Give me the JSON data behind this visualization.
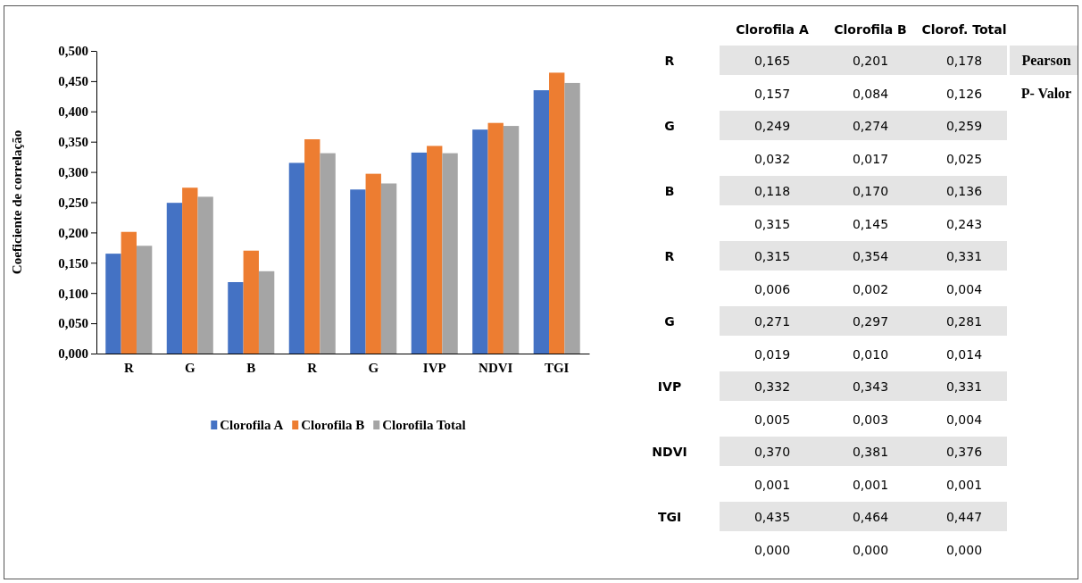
{
  "chart_data": [
    {
      "type": "bar",
      "ylabel": "Coeficiente de correlação",
      "categories": [
        "R",
        "G",
        "B",
        "R",
        "G",
        "IVP",
        "NDVI",
        "TGI"
      ],
      "series": [
        {
          "name": "Clorofila A",
          "color": "#4472c4",
          "values": [
            0.165,
            0.249,
            0.118,
            0.315,
            0.271,
            0.332,
            0.37,
            0.435
          ]
        },
        {
          "name": "Clorofila B",
          "color": "#ed7d31",
          "values": [
            0.201,
            0.274,
            0.17,
            0.354,
            0.297,
            0.343,
            0.381,
            0.464
          ]
        },
        {
          "name": "Clorofila Total",
          "color": "#a5a5a5",
          "values": [
            0.178,
            0.259,
            0.136,
            0.331,
            0.281,
            0.331,
            0.376,
            0.447
          ]
        }
      ],
      "ylim": [
        0,
        0.5
      ],
      "yticks": [
        {
          "value": 0,
          "label": "0,000"
        },
        {
          "value": 0.05,
          "label": "0,050"
        },
        {
          "value": 0.1,
          "label": "0,100"
        },
        {
          "value": 0.15,
          "label": "0,150"
        },
        {
          "value": 0.2,
          "label": "0,200"
        },
        {
          "value": 0.25,
          "label": "0,250"
        },
        {
          "value": 0.3,
          "label": "0,300"
        },
        {
          "value": 0.35,
          "label": "0,350"
        },
        {
          "value": 0.4,
          "label": "0,400"
        },
        {
          "value": 0.45,
          "label": "0,450"
        },
        {
          "value": 0.5,
          "label": "0,500"
        }
      ],
      "grid": false,
      "legend": "bottom"
    },
    {
      "type": "other",
      "categories": [
        "Clorofila A",
        "Clorofila B",
        "Clorof. Total"
      ],
      "y_categories": [
        "R",
        null,
        "G",
        null,
        "B",
        null,
        "R",
        null,
        "G",
        null,
        "IVP",
        null,
        "NDVI",
        null,
        "TGI",
        null
      ],
      "y2_categories": [
        "Pearson",
        "P- Valor",
        null,
        null,
        null,
        null,
        null,
        null,
        null,
        null,
        null,
        null,
        null,
        null,
        null,
        null
      ],
      "cell_labels": [
        [
          "0,165",
          "0,201",
          "0,178"
        ],
        [
          "0,157",
          "0,084",
          "0,126"
        ],
        [
          "0,249",
          "0,274",
          "0,259"
        ],
        [
          "0,032",
          "0,017",
          "0,025"
        ],
        [
          "0,118",
          "0,170",
          "0,136"
        ],
        [
          "0,315",
          "0,145",
          "0,243"
        ],
        [
          "0,315",
          "0,354",
          "0,331"
        ],
        [
          "0,006",
          "0,002",
          "0,004"
        ],
        [
          "0,271",
          "0,297",
          "0,281"
        ],
        [
          "0,019",
          "0,010",
          "0,014"
        ],
        [
          "0,332",
          "0,343",
          "0,331"
        ],
        [
          "0,005",
          "0,003",
          "0,004"
        ],
        [
          "0,370",
          "0,381",
          "0,376"
        ],
        [
          "0,001",
          "0,001",
          "0,001"
        ],
        [
          "0,435",
          "0,464",
          "0,447"
        ],
        [
          "0,000",
          "0,000",
          "0,000"
        ]
      ]
    }
  ]
}
